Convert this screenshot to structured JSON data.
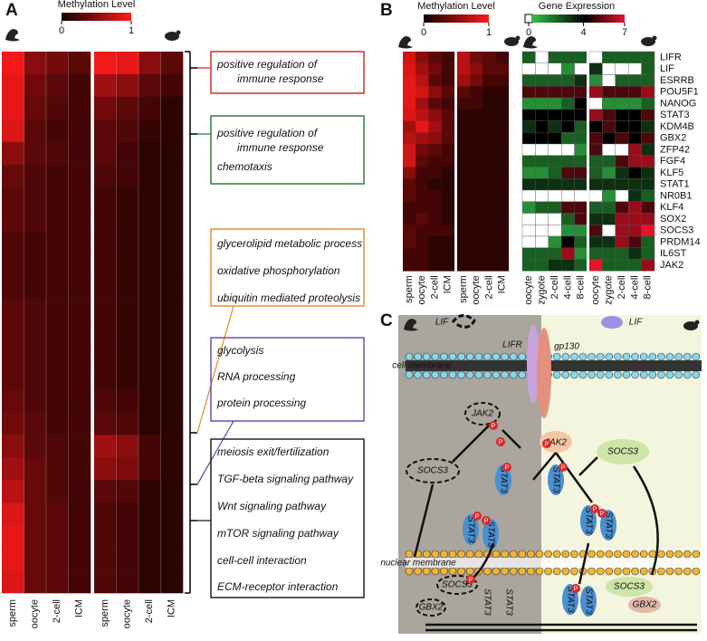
{
  "panel_a": {
    "label": "A",
    "colorbar": {
      "title": "Methylation Level",
      "lim": [
        0,
        1
      ],
      "ticks": [
        0,
        1
      ]
    },
    "columns": [
      "sperm",
      "oocyte",
      "2-cell",
      "ICM",
      "sperm",
      "oocyte",
      "2-cell",
      "ICM"
    ],
    "heatmap": [
      [
        0.95,
        0.5,
        0.4,
        0.3,
        0.95,
        0.9,
        0.5,
        0.3
      ],
      [
        0.9,
        0.4,
        0.3,
        0.2,
        0.6,
        0.5,
        0.3,
        0.2
      ],
      [
        0.9,
        0.35,
        0.25,
        0.2,
        0.4,
        0.3,
        0.2,
        0.1
      ],
      [
        0.85,
        0.3,
        0.2,
        0.2,
        0.3,
        0.25,
        0.15,
        0.1
      ],
      [
        0.5,
        0.3,
        0.25,
        0.2,
        0.3,
        0.2,
        0.1,
        0.1
      ],
      [
        0.35,
        0.25,
        0.2,
        0.2,
        0.25,
        0.2,
        0.1,
        0.1
      ],
      [
        0.3,
        0.25,
        0.2,
        0.2,
        0.2,
        0.15,
        0.1,
        0.1
      ],
      [
        0.3,
        0.25,
        0.2,
        0.2,
        0.2,
        0.15,
        0.1,
        0.1
      ],
      [
        0.25,
        0.2,
        0.2,
        0.2,
        0.2,
        0.15,
        0.1,
        0.1
      ],
      [
        0.25,
        0.2,
        0.2,
        0.2,
        0.2,
        0.15,
        0.1,
        0.1
      ],
      [
        0.25,
        0.2,
        0.2,
        0.2,
        0.2,
        0.15,
        0.1,
        0.1
      ],
      [
        0.3,
        0.25,
        0.2,
        0.2,
        0.2,
        0.15,
        0.1,
        0.1
      ],
      [
        0.3,
        0.25,
        0.2,
        0.2,
        0.2,
        0.15,
        0.1,
        0.1
      ],
      [
        0.3,
        0.25,
        0.2,
        0.2,
        0.2,
        0.15,
        0.1,
        0.1
      ],
      [
        0.3,
        0.25,
        0.2,
        0.2,
        0.2,
        0.15,
        0.1,
        0.1
      ],
      [
        0.35,
        0.25,
        0.2,
        0.2,
        0.25,
        0.2,
        0.1,
        0.1
      ],
      [
        0.4,
        0.3,
        0.2,
        0.2,
        0.3,
        0.25,
        0.1,
        0.1
      ],
      [
        0.5,
        0.3,
        0.25,
        0.2,
        0.6,
        0.5,
        0.2,
        0.1
      ],
      [
        0.6,
        0.35,
        0.25,
        0.2,
        0.5,
        0.45,
        0.2,
        0.1
      ],
      [
        0.7,
        0.35,
        0.25,
        0.2,
        0.3,
        0.25,
        0.1,
        0.1
      ],
      [
        0.85,
        0.35,
        0.3,
        0.2,
        0.25,
        0.2,
        0.1,
        0.1
      ],
      [
        0.9,
        0.35,
        0.3,
        0.2,
        0.25,
        0.2,
        0.1,
        0.1
      ],
      [
        0.9,
        0.35,
        0.3,
        0.2,
        0.25,
        0.2,
        0.1,
        0.1
      ],
      [
        0.85,
        0.35,
        0.3,
        0.2,
        0.25,
        0.2,
        0.1,
        0.1
      ]
    ],
    "go_groups": [
      {
        "color": "#e02b26",
        "terms": [
          [
            "positive regulation of",
            "immune response"
          ]
        ]
      },
      {
        "color": "#2e7d3a",
        "terms": [
          [
            "positive regulation of",
            "immune response"
          ],
          [
            "chemotaxis"
          ]
        ]
      },
      {
        "color": "#e0922a",
        "terms": [
          [
            "glycerolipid metabolic process"
          ],
          [
            "oxidative phosphorylation"
          ],
          [
            "ubiquitin mediated proteolysis"
          ]
        ]
      },
      {
        "color": "#6a4fb0",
        "terms": [
          [
            "glycolysis"
          ],
          [
            "RNA processing"
          ],
          [
            "protein processing"
          ]
        ]
      },
      {
        "color": "#222222",
        "terms": [
          [
            "meiosis exit/fertilization"
          ],
          [
            "TGF-beta signaling pathway"
          ],
          [
            "Wnt signaling pathway"
          ],
          [
            "mTOR signaling pathway"
          ],
          [
            "cell-cell interaction"
          ],
          [
            "ECM-receptor interaction"
          ]
        ]
      }
    ]
  },
  "panel_b": {
    "label": "B",
    "genes": [
      "LIFR",
      "LIF",
      "ESRRB",
      "POU5F1",
      "NANOG",
      "STAT3",
      "KDM4B",
      "GBX2",
      "ZFP42",
      "FGF4",
      "KLF5",
      "STAT1",
      "NR0B1",
      "KLF4",
      "SOX2",
      "SOCS3",
      "PRDM14",
      "IL6ST",
      "JAK2"
    ],
    "methylation": {
      "colorbar": {
        "title": "Methylation Level",
        "lim": [
          0,
          1
        ],
        "ticks": [
          0,
          1
        ]
      },
      "columns": [
        "sperm",
        "oocyte",
        "2-cell",
        "ICM",
        "sperm",
        "oocyte",
        "2-cell",
        "ICM"
      ],
      "values": [
        [
          0.8,
          0.5,
          0.3,
          0.2,
          0.7,
          0.4,
          0.3,
          0.2
        ],
        [
          0.85,
          0.6,
          0.4,
          0.2,
          0.7,
          0.5,
          0.3,
          0.3
        ],
        [
          0.9,
          0.7,
          0.3,
          0.2,
          0.6,
          0.4,
          0.2,
          0.2
        ],
        [
          0.9,
          0.8,
          0.5,
          0.3,
          0.3,
          0.2,
          0.1,
          0.1
        ],
        [
          0.9,
          0.6,
          0.3,
          0.2,
          0.2,
          0.2,
          0.1,
          0.1
        ],
        [
          0.85,
          0.7,
          0.5,
          0.3,
          0.1,
          0.1,
          0.1,
          0.1
        ],
        [
          0.6,
          0.9,
          0.6,
          0.3,
          0.1,
          0.1,
          0.1,
          0.1
        ],
        [
          0.7,
          0.6,
          0.5,
          0.3,
          0.1,
          0.1,
          0.1,
          0.1
        ],
        [
          0.8,
          0.4,
          0.3,
          0.2,
          0.1,
          0.1,
          0.1,
          0.1
        ],
        [
          0.8,
          0.3,
          0.2,
          0.2,
          0.1,
          0.1,
          0.1,
          0.1
        ],
        [
          0.5,
          0.2,
          0.2,
          0.1,
          0.1,
          0.1,
          0.1,
          0.1
        ],
        [
          0.3,
          0.2,
          0.1,
          0.1,
          0.1,
          0.1,
          0.1,
          0.1
        ],
        [
          0.3,
          0.2,
          0.2,
          0.1,
          0.1,
          0.1,
          0.1,
          0.1
        ],
        [
          0.2,
          0.2,
          0.2,
          0.1,
          0.1,
          0.1,
          0.1,
          0.1
        ],
        [
          0.2,
          0.3,
          0.2,
          0.1,
          0.1,
          0.1,
          0.1,
          0.1
        ],
        [
          0.3,
          0.2,
          0.2,
          0.2,
          0.1,
          0.1,
          0.1,
          0.1
        ],
        [
          0.3,
          0.2,
          0.1,
          0.1,
          0.1,
          0.1,
          0.1,
          0.1
        ],
        [
          0.2,
          0.2,
          0.1,
          0.1,
          0.1,
          0.1,
          0.1,
          0.1
        ],
        [
          0.2,
          0.2,
          0.1,
          0.1,
          0.1,
          0.1,
          0.1,
          0.1
        ]
      ]
    },
    "expression": {
      "colorbar": {
        "title": "Gene Expression",
        "lim": [
          0,
          7
        ],
        "ticks": [
          0,
          4,
          7
        ]
      },
      "columns": [
        "oocyte",
        "zygote",
        "2-cell",
        "4-cell",
        "8-cell",
        "oocyte",
        "zygote",
        "2-cell",
        "4-cell",
        "8-cell"
      ],
      "values": [
        [
          2,
          0,
          2,
          2,
          2,
          0,
          2,
          2,
          2,
          2
        ],
        [
          0,
          0,
          0,
          1,
          0,
          3,
          0,
          0,
          0,
          2
        ],
        [
          2,
          2,
          2,
          2,
          3,
          1,
          0,
          2,
          2,
          2
        ],
        [
          5,
          5,
          5,
          5,
          5,
          6,
          5,
          5,
          5,
          6
        ],
        [
          1,
          1,
          1,
          2,
          4,
          0,
          1,
          1,
          1,
          2
        ],
        [
          4,
          4,
          4,
          4,
          4,
          6,
          5,
          4,
          4,
          5
        ],
        [
          3,
          4,
          3,
          4,
          2,
          4,
          5,
          4,
          4,
          3
        ],
        [
          4,
          4,
          4,
          2,
          2,
          5,
          4,
          5,
          4,
          5
        ],
        [
          0,
          0,
          0,
          0,
          1,
          5,
          0,
          0,
          6,
          3
        ],
        [
          2,
          2,
          2,
          2,
          2,
          2,
          2,
          5,
          6,
          6
        ],
        [
          1,
          1,
          2,
          5,
          5,
          2,
          1,
          3,
          4,
          3
        ],
        [
          3,
          3,
          3,
          3,
          3,
          3,
          3,
          3,
          3,
          3
        ],
        [
          0,
          0,
          0,
          0,
          0,
          0,
          1,
          0,
          3,
          2
        ],
        [
          1,
          2,
          2,
          5,
          5,
          2,
          2,
          5,
          6,
          5
        ],
        [
          0,
          0,
          0,
          2,
          5,
          3,
          3,
          6,
          6,
          6
        ],
        [
          0,
          0,
          0,
          1,
          1,
          5,
          0,
          6,
          6,
          7
        ],
        [
          0,
          0,
          1,
          4,
          2,
          3,
          3,
          6,
          5,
          2
        ],
        [
          2,
          2,
          2,
          6,
          1,
          2,
          2,
          2,
          3,
          2
        ],
        [
          2,
          2,
          3,
          3,
          2,
          7,
          2,
          2,
          2,
          6
        ]
      ]
    }
  },
  "panel_c": {
    "label": "C",
    "ligand": "LIF",
    "receptor": "LIFR",
    "coreceptor": "gp130",
    "cell_membrane": "cell membrane",
    "nuclear_membrane": "nuclear membrane",
    "kinase": "JAK2",
    "inhibitor": "SOCS3",
    "factor": "STAT3",
    "phospho": "P",
    "target": "GBX2"
  }
}
